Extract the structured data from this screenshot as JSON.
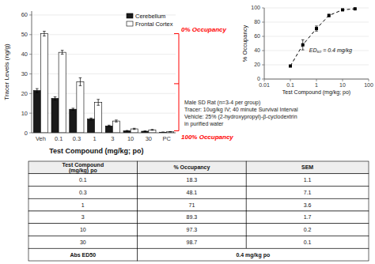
{
  "chart_data": [
    {
      "type": "bar",
      "categories": [
        "Veh",
        "0.1",
        "0.3",
        "1",
        "3",
        "10",
        "30",
        "PC"
      ],
      "series": [
        {
          "name": "Cerebellum",
          "color": "#1a1a1a",
          "values": [
            21.5,
            17.5,
            12.0,
            7.0,
            3.5,
            1.0,
            0.8,
            0.3
          ],
          "errors": [
            1.0,
            0.8,
            0.5,
            0.5,
            0.4,
            0.2,
            0.15,
            0.1
          ]
        },
        {
          "name": "Frontal Cortex",
          "color": "#ffffff",
          "values": [
            50.5,
            41.0,
            26.0,
            15.5,
            6.0,
            2.0,
            1.5,
            0.5
          ],
          "errors": [
            1.2,
            1.0,
            2.0,
            1.5,
            0.5,
            0.3,
            0.2,
            0.1
          ]
        }
      ],
      "xlabel": "Test Compound (mg/kg; po)",
      "ylabel": "Tracer Levels (ng/g)",
      "ylim": [
        0,
        62
      ],
      "yticks": [
        0,
        10,
        20,
        30,
        40,
        50,
        60
      ],
      "legend": "upper right",
      "bracket": {
        "values": [
          50.5,
          25.0,
          1.0
        ],
        "color": "red"
      },
      "annotations": [
        {
          "text": "0% Occupancy",
          "y": 50.5
        },
        {
          "text": "100% Occupancy",
          "y": 1.0
        }
      ]
    },
    {
      "type": "line",
      "x": [
        0.1,
        0.3,
        1.0,
        3.0,
        10.0,
        30.0
      ],
      "series": [
        {
          "color": "#000000",
          "marker": "square",
          "line_style": "dashed",
          "values": [
            18.3,
            48.1,
            71.0,
            89.3,
            97.3,
            98.7
          ],
          "errors": [
            1.1,
            7.1,
            3.6,
            1.7,
            0.2,
            0.1
          ]
        }
      ],
      "log": "x",
      "xlabel": "Test Compound (mg/kg; po)",
      "ylabel": "% Occupancy",
      "xlim": [
        0.01,
        100
      ],
      "xticks": [
        0.01,
        0.1,
        1,
        10,
        100
      ],
      "ylim": [
        0,
        100
      ],
      "yticks": [
        0,
        20,
        40,
        60,
        80,
        100
      ],
      "annotations": [
        {
          "text": "ED₅₀ = 0.4 mg/kg"
        }
      ],
      "notes": [
        "Male SD Rat (n=3-4  per group)",
        "Tracer: 10ug/kg IV; 40 minute Survival Interval",
        "Vehicle: 25% (2-hydroxypropyl)-β-cyclodextrin",
        "in purified water"
      ]
    },
    {
      "type": "table",
      "columns": [
        "Test Compound\n(mg/kg) po",
        "% Occupancy",
        "SEM"
      ],
      "rows": [
        [
          "0.1",
          "18.3",
          "1.1"
        ],
        [
          "0.3",
          "48.1",
          "7.1"
        ],
        [
          "1",
          "71",
          "3.6"
        ],
        [
          "3",
          "89.3",
          "1.7"
        ],
        [
          "10",
          "97.3",
          "0.2"
        ],
        [
          "30",
          "98.7",
          "0.1"
        ],
        [
          "Abs ED50",
          "0.4 mg/kg po"
        ]
      ]
    }
  ]
}
